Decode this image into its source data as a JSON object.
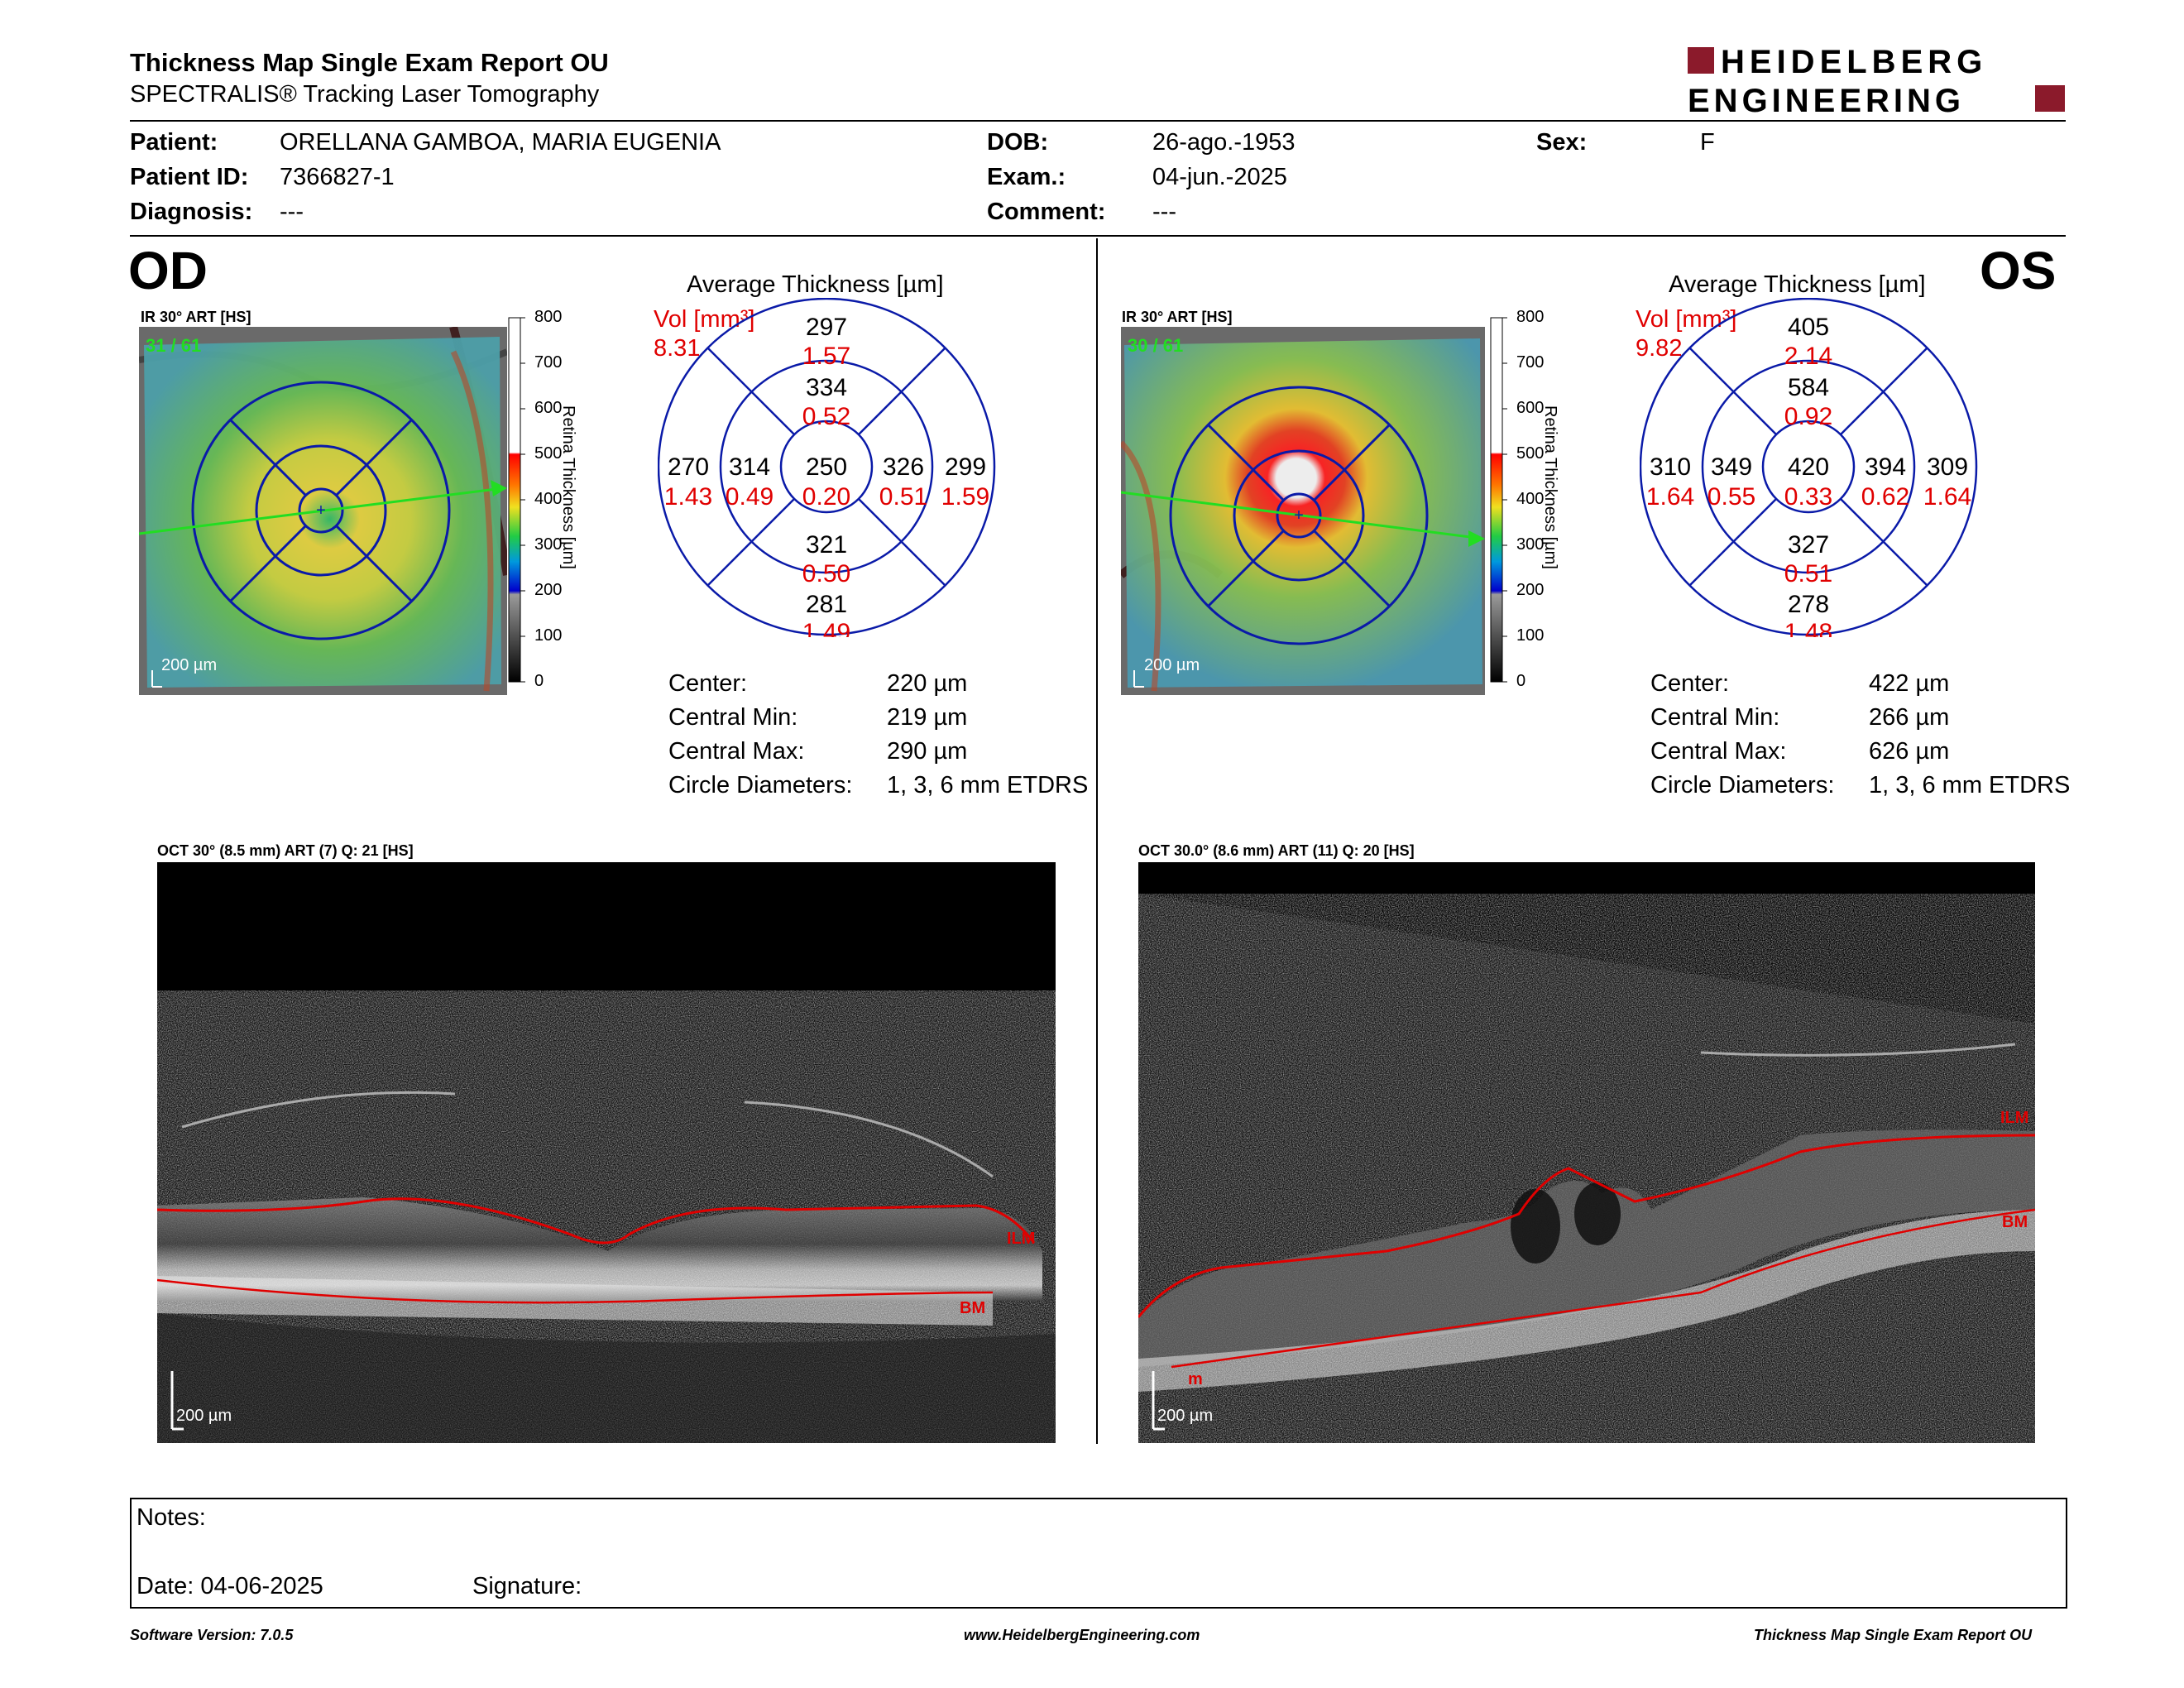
{
  "header": {
    "title": "Thickness Map Single Exam Report OU",
    "subtitle": "SPECTRALIS® Tracking Laser Tomography",
    "logo_line1": "HEIDELBERG",
    "logo_line2": "ENGINEERING"
  },
  "patient": {
    "patient_label": "Patient:",
    "patient_value": "ORELLANA GAMBOA, MARIA EUGENIA",
    "id_label": "Patient ID:",
    "id_value": "7366827-1",
    "diagnosis_label": "Diagnosis:",
    "diagnosis_value": "---",
    "dob_label": "DOB:",
    "dob_value": "26-ago.-1953",
    "exam_label": "Exam.:",
    "exam_value": "04-jun.-2025",
    "comment_label": "Comment:",
    "comment_value": "---",
    "sex_label": "Sex:",
    "sex_value": "F"
  },
  "colorbar": {
    "title": "Retina Thickness [µm]",
    "ticks": [
      "800",
      "700",
      "600",
      "500",
      "400",
      "300",
      "200",
      "100",
      "0"
    ]
  },
  "od": {
    "eye": "OD",
    "fundus_label": "IR 30° ART [HS]",
    "frame_label": "31 / 61",
    "scale_label": "200 µm",
    "avg_title": "Average Thickness [µm]",
    "vol_label": "Vol [mm³]",
    "vol_total": "8.31",
    "sectors": {
      "outer_sup": [
        "297",
        "1.57"
      ],
      "inner_sup": [
        "334",
        "0.52"
      ],
      "outer_temp": [
        "270",
        "1.43"
      ],
      "inner_temp": [
        "314",
        "0.49"
      ],
      "center": [
        "250",
        "0.20"
      ],
      "inner_nas": [
        "326",
        "0.51"
      ],
      "outer_nas": [
        "299",
        "1.59"
      ],
      "inner_inf": [
        "321",
        "0.50"
      ],
      "outer_inf": [
        "281",
        "1.49"
      ]
    },
    "stats": {
      "center_label": "Center:",
      "center_value": "220 µm",
      "min_label": "Central Min:",
      "min_value": "219 µm",
      "max_label": "Central Max:",
      "max_value": "290 µm",
      "diam_label": "Circle Diameters:",
      "diam_value": "1, 3, 6 mm ETDRS"
    },
    "oct_label": "OCT 30° (8.5 mm) ART (7) Q: 21 [HS]",
    "ilm": "ILM",
    "bm": "BM",
    "oct_scale": "200 µm"
  },
  "os": {
    "eye": "OS",
    "fundus_label": "IR 30° ART [HS]",
    "frame_label": "30 / 61",
    "scale_label": "200 µm",
    "avg_title": "Average Thickness [µm]",
    "vol_label": "Vol [mm³]",
    "vol_total": "9.82",
    "sectors": {
      "outer_sup": [
        "405",
        "2.14"
      ],
      "inner_sup": [
        "584",
        "0.92"
      ],
      "outer_temp": [
        "310",
        "1.64"
      ],
      "inner_temp": [
        "349",
        "0.55"
      ],
      "center": [
        "420",
        "0.33"
      ],
      "inner_nas": [
        "394",
        "0.62"
      ],
      "outer_nas": [
        "309",
        "1.64"
      ],
      "inner_inf": [
        "327",
        "0.51"
      ],
      "outer_inf": [
        "278",
        "1.48"
      ]
    },
    "stats": {
      "center_label": "Center:",
      "center_value": "422 µm",
      "min_label": "Central Min:",
      "min_value": "266 µm",
      "max_label": "Central Max:",
      "max_value": "626 µm",
      "diam_label": "Circle Diameters:",
      "diam_value": "1, 3, 6 mm ETDRS"
    },
    "oct_label": "OCT 30.0° (8.6 mm) ART (11) Q: 20 [HS]",
    "ilm": "ILM",
    "bm": "BM",
    "oct_scale": "200 µm",
    "extra_mark": "m"
  },
  "notes": {
    "notes_label": "Notes:",
    "date_label": "Date: 04-06-2025",
    "signature_label": "Signature:"
  },
  "footer": {
    "left": "Software Version: 7.0.5",
    "center": "www.HeidelbergEngineering.com",
    "right": "Thickness Map Single Exam Report OU"
  },
  "colors": {
    "accent_red": "#e00000",
    "logo_red": "#8b1a2b",
    "grid_blue": "#0a1aa8",
    "scan_green": "#22dd22"
  }
}
